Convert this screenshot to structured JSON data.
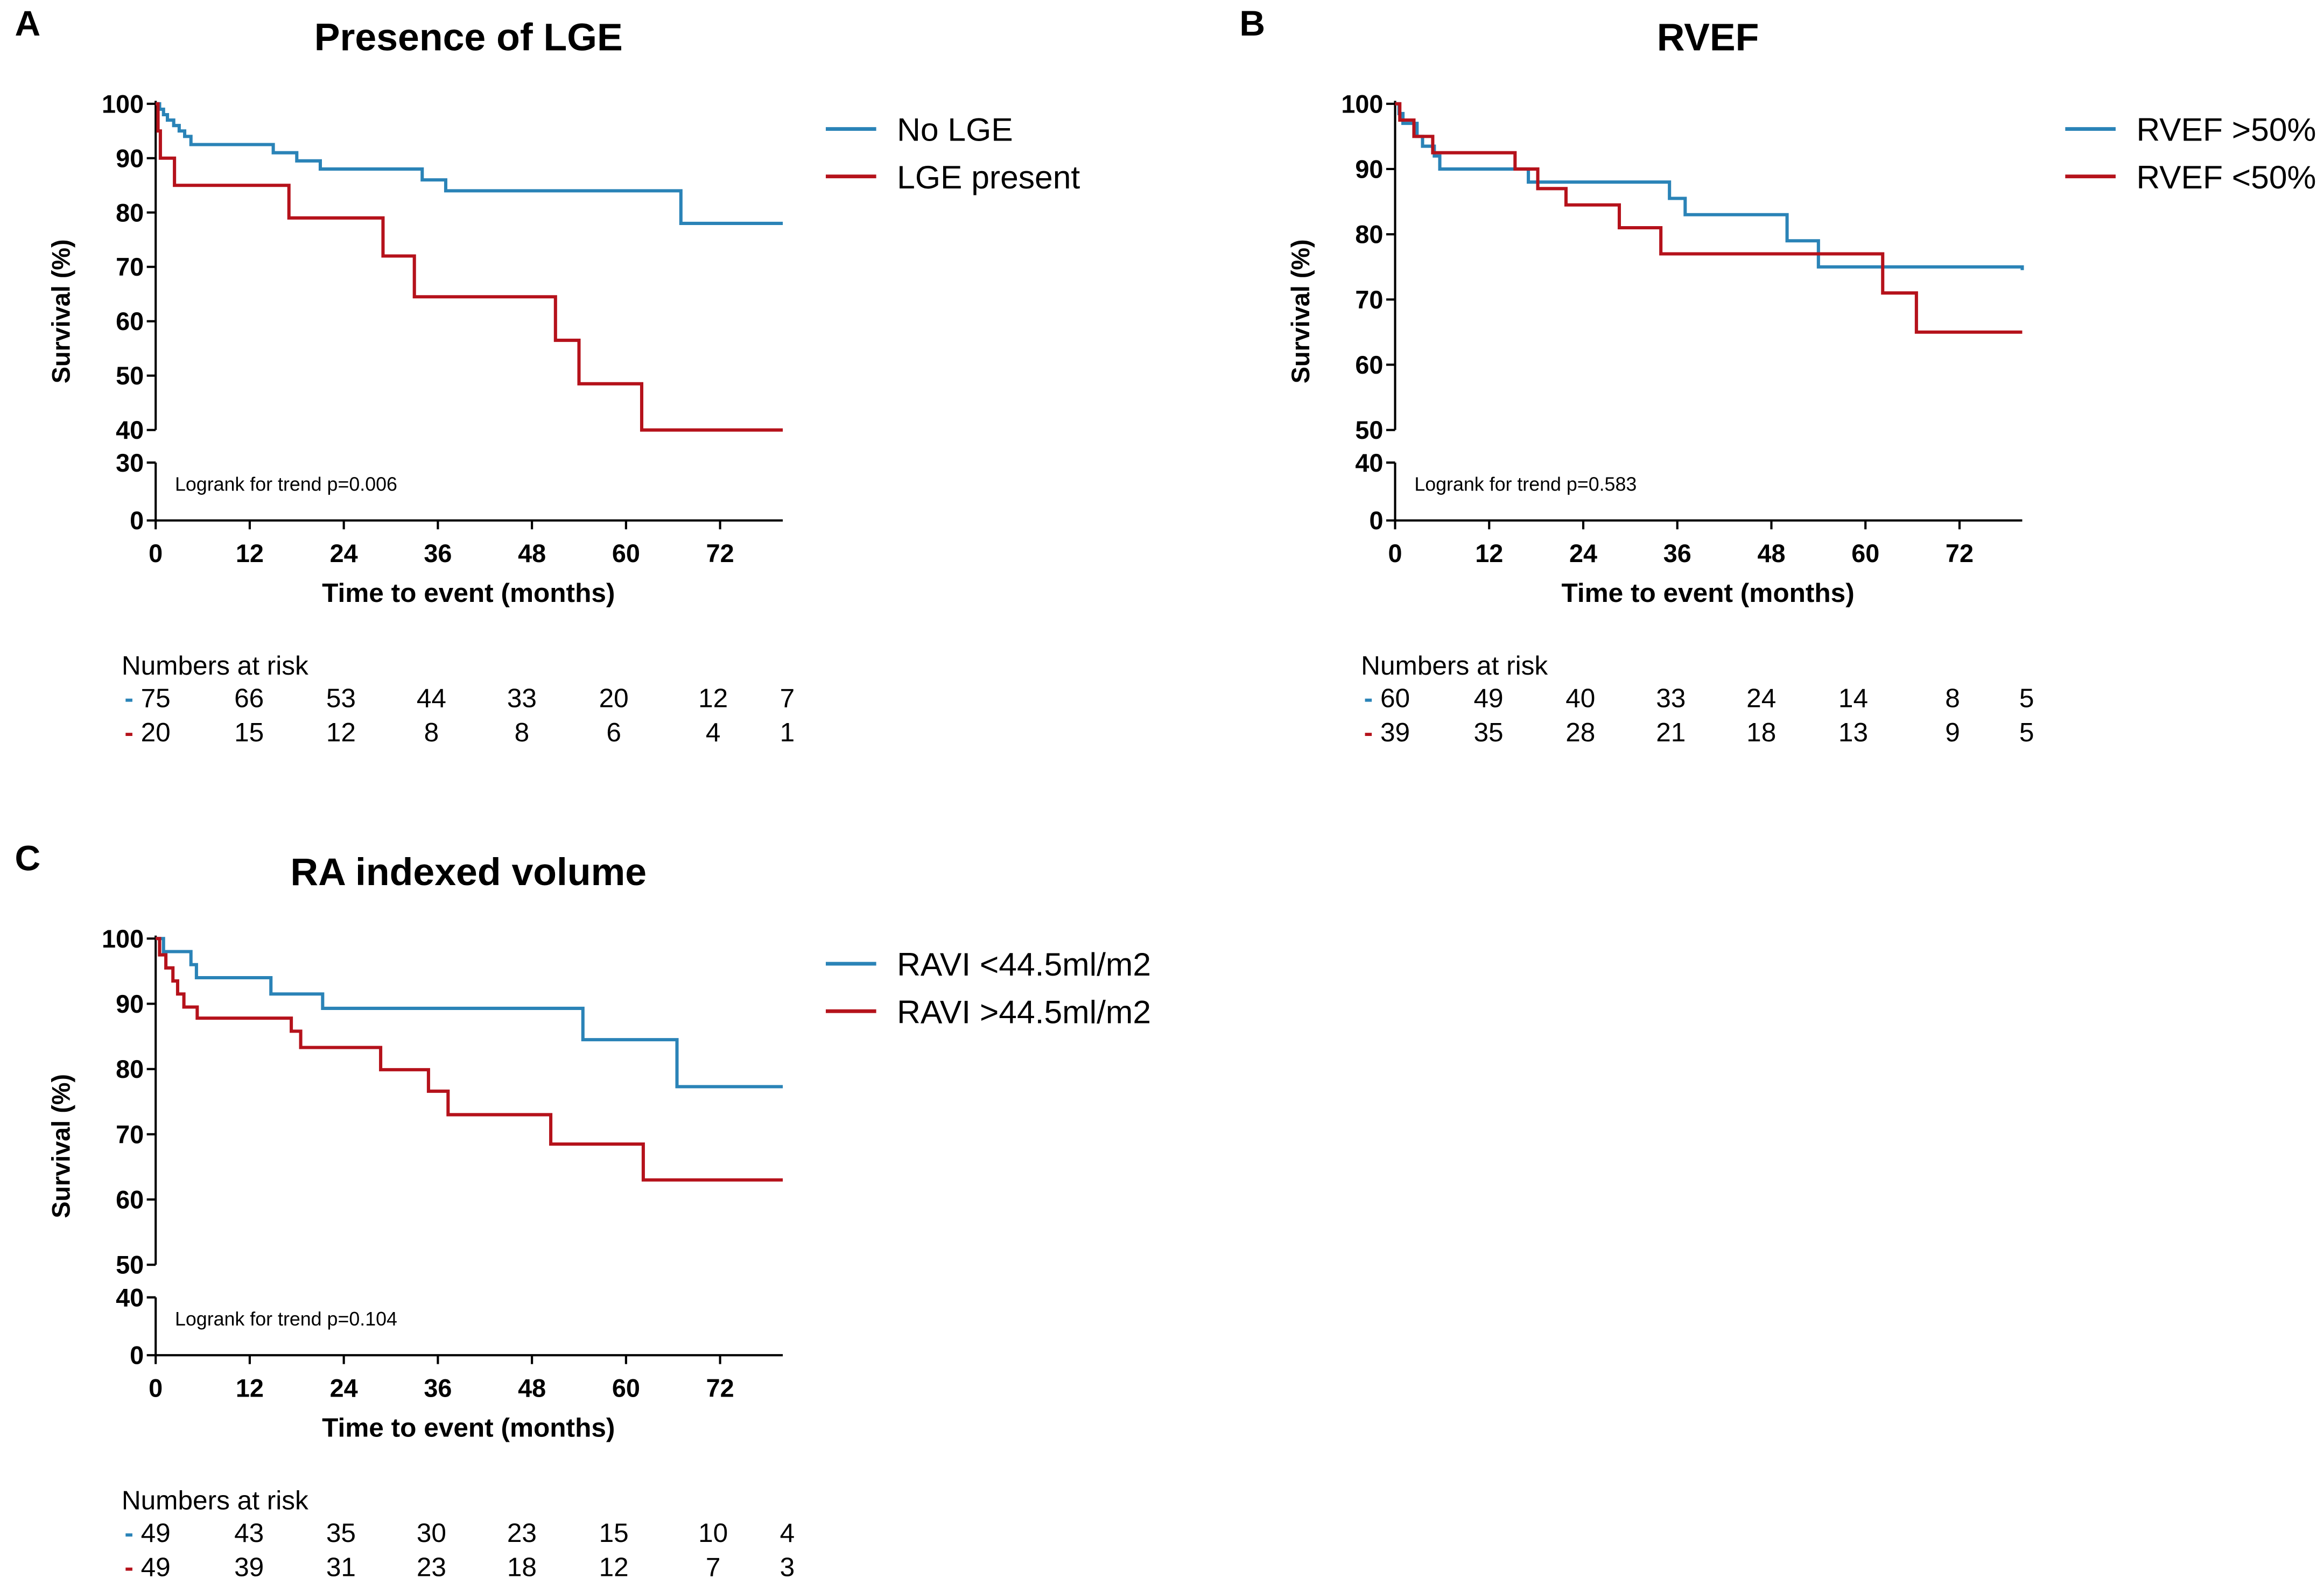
{
  "figure": {
    "colors": {
      "series1": "#2a83b7",
      "series2": "#b5121b",
      "axis": "#000000"
    },
    "x_axis": {
      "label": "Time to event (months)",
      "ticks": [
        "0",
        "12",
        "24",
        "36",
        "48",
        "60",
        "72"
      ],
      "tick_values": [
        0,
        12,
        24,
        36,
        48,
        60,
        72
      ],
      "range": [
        0,
        80
      ]
    },
    "y_label": "Survival (%)",
    "risk_header": "Numbers at risk"
  },
  "chart_data": [
    {
      "type": "line",
      "panel_letter": "A",
      "title": "Presence of LGE",
      "xlabel": "Time to event (months)",
      "ylabel": "Survival (%)",
      "ylim_upper": [
        40,
        100
      ],
      "ylim_lower": [
        0,
        30
      ],
      "yticks_upper": [
        "40",
        "50",
        "60",
        "70",
        "80",
        "90",
        "100"
      ],
      "ytick_values_upper": [
        40,
        50,
        60,
        70,
        80,
        90,
        100
      ],
      "yticks_lower": [
        "0",
        "30"
      ],
      "annotation": "Logrank for trend p=0.006",
      "legend_position": "top-right",
      "series": [
        {
          "name": "No LGE",
          "color": "#2a83b7",
          "steps": [
            [
              0,
              100
            ],
            [
              0.5,
              99
            ],
            [
              1,
              98
            ],
            [
              1.5,
              97
            ],
            [
              2.3,
              96
            ],
            [
              3,
              95
            ],
            [
              3.7,
              94
            ],
            [
              4.5,
              92.5
            ],
            [
              15,
              91
            ],
            [
              18,
              89.5
            ],
            [
              21,
              88
            ],
            [
              34,
              86
            ],
            [
              37,
              84
            ],
            [
              67,
              78
            ],
            [
              80,
              78
            ]
          ],
          "risk": [
            "75",
            "66",
            "53",
            "44",
            "33",
            "20",
            "12",
            "7"
          ]
        },
        {
          "name": "LGE present",
          "color": "#b5121b",
          "steps": [
            [
              0,
              100
            ],
            [
              0.3,
              95
            ],
            [
              0.6,
              90
            ],
            [
              2.4,
              85
            ],
            [
              17,
              79
            ],
            [
              29,
              72
            ],
            [
              33,
              64.5
            ],
            [
              51,
              56.5
            ],
            [
              54,
              48.5
            ],
            [
              62,
              40
            ],
            [
              80,
              40
            ]
          ],
          "risk": [
            "20",
            "15",
            "12",
            "8",
            "8",
            "6",
            "4",
            "1"
          ]
        }
      ]
    },
    {
      "type": "line",
      "panel_letter": "B",
      "title": "RVEF",
      "xlabel": "Time to event (months)",
      "ylabel": "Survival (%)",
      "ylim_upper": [
        50,
        100
      ],
      "ylim_lower": [
        0,
        40
      ],
      "yticks_upper": [
        "50",
        "60",
        "70",
        "80",
        "90",
        "100"
      ],
      "ytick_values_upper": [
        50,
        60,
        70,
        80,
        90,
        100
      ],
      "yticks_lower": [
        "0",
        "40"
      ],
      "annotation": "Logrank for trend p=0.583",
      "legend_position": "top-right",
      "series": [
        {
          "name": "RVEF >50%",
          "color": "#2a83b7",
          "steps": [
            [
              0,
              100
            ],
            [
              0.5,
              98.5
            ],
            [
              1,
              97
            ],
            [
              2.8,
              95
            ],
            [
              3.5,
              93.5
            ],
            [
              5,
              92
            ],
            [
              5.7,
              90
            ],
            [
              17,
              88
            ],
            [
              35,
              85.5
            ],
            [
              37,
              83
            ],
            [
              50,
              79
            ],
            [
              54,
              75
            ],
            [
              80,
              74.5
            ]
          ],
          "risk": [
            "60",
            "49",
            "40",
            "33",
            "24",
            "14",
            "8",
            "5"
          ]
        },
        {
          "name": "RVEF <50%",
          "color": "#b5121b",
          "steps": [
            [
              0,
              100
            ],
            [
              0.6,
              97.5
            ],
            [
              2.4,
              95
            ],
            [
              4.8,
              92.5
            ],
            [
              15.3,
              90
            ],
            [
              18.2,
              87
            ],
            [
              21.8,
              84.5
            ],
            [
              28.6,
              81
            ],
            [
              33.9,
              77
            ],
            [
              62.2,
              71
            ],
            [
              66.5,
              65
            ],
            [
              80,
              65
            ]
          ],
          "risk": [
            "39",
            "35",
            "28",
            "21",
            "18",
            "13",
            "9",
            "5"
          ]
        }
      ]
    },
    {
      "type": "line",
      "panel_letter": "C",
      "title": "RA  indexed volume",
      "xlabel": "Time to event (months)",
      "ylabel": "Survival (%)",
      "ylim_upper": [
        50,
        100
      ],
      "ylim_lower": [
        0,
        40
      ],
      "yticks_upper": [
        "50",
        "60",
        "70",
        "80",
        "90",
        "100"
      ],
      "ytick_values_upper": [
        50,
        60,
        70,
        80,
        90,
        100
      ],
      "yticks_lower": [
        "0",
        "40"
      ],
      "annotation": "Logrank for trend p=0.104",
      "legend_position": "top-right",
      "series": [
        {
          "name": "RAVI <44.5ml/m2",
          "color": "#2a83b7",
          "steps": [
            [
              0,
              100
            ],
            [
              1,
              98
            ],
            [
              4.5,
              96
            ],
            [
              5.2,
              94
            ],
            [
              14.7,
              91.5
            ],
            [
              21.3,
              89.3
            ],
            [
              54.5,
              84.5
            ],
            [
              66.5,
              77.3
            ],
            [
              80,
              77.3
            ]
          ],
          "risk": [
            "49",
            "43",
            "35",
            "30",
            "23",
            "15",
            "10",
            "4"
          ]
        },
        {
          "name": "RAVI >44.5ml/m2",
          "color": "#b5121b",
          "steps": [
            [
              0,
              100
            ],
            [
              0.5,
              97.5
            ],
            [
              1.3,
              95.5
            ],
            [
              2.2,
              93.5
            ],
            [
              2.8,
              91.5
            ],
            [
              3.6,
              89.5
            ],
            [
              5.3,
              87.8
            ],
            [
              17.3,
              85.8
            ],
            [
              18.5,
              83.3
            ],
            [
              28.7,
              79.9
            ],
            [
              34.8,
              76.6
            ],
            [
              37.3,
              73
            ],
            [
              50.4,
              68.5
            ],
            [
              62.2,
              63
            ],
            [
              80,
              63
            ]
          ],
          "risk": [
            "49",
            "39",
            "31",
            "23",
            "18",
            "12",
            "7",
            "3"
          ]
        }
      ]
    }
  ]
}
